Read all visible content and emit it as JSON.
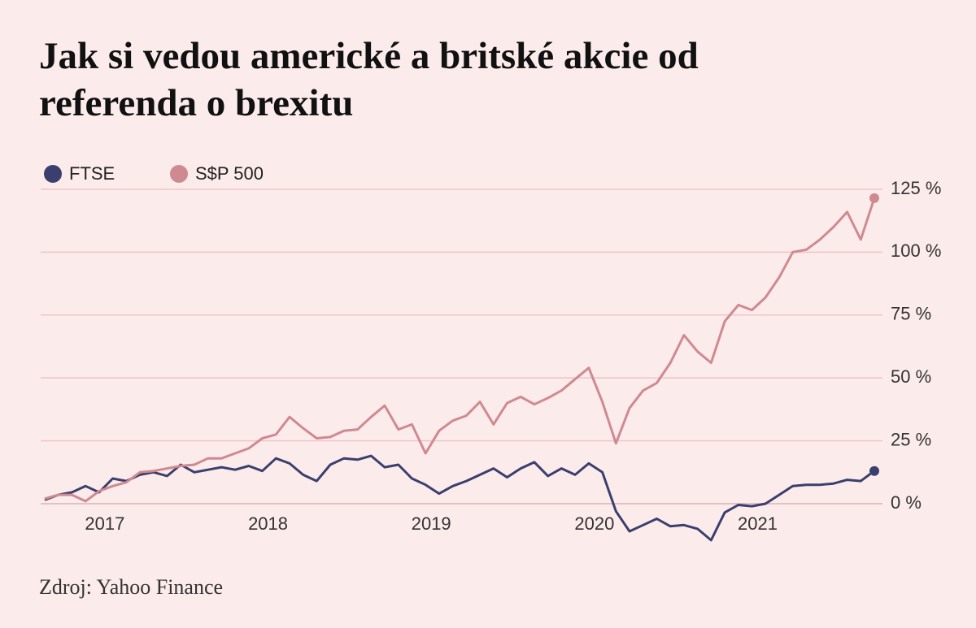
{
  "chart_data": {
    "type": "line",
    "title": [
      "Jak si vedou americké a britské akcie od",
      "referenda o brexitu"
    ],
    "source": "Zdroj: Yahoo Finance",
    "categories": [
      null,
      null,
      null,
      null,
      "2017",
      null,
      null,
      null,
      null,
      null,
      null,
      null,
      null,
      null,
      null,
      null,
      "2018",
      null,
      null,
      null,
      null,
      null,
      null,
      null,
      null,
      null,
      null,
      null,
      "2019",
      null,
      null,
      null,
      null,
      null,
      null,
      null,
      null,
      null,
      null,
      null,
      "2020",
      null,
      null,
      null,
      null,
      null,
      null,
      null,
      null,
      null,
      null,
      null,
      "2021",
      null,
      null,
      null,
      null,
      null,
      null,
      null,
      null,
      null
    ],
    "series": [
      {
        "name": "FTSE",
        "color": "#3b3f6e",
        "values": [
          1.5,
          3.5,
          4.5,
          7,
          4.5,
          10,
          9,
          11.5,
          12.5,
          11,
          15.5,
          12.5,
          13.5,
          14.5,
          13.5,
          15,
          13,
          18,
          16,
          11.5,
          9,
          15.5,
          18,
          17.5,
          19,
          14.5,
          15.5,
          10,
          7.5,
          4,
          7,
          9,
          11.5,
          14,
          10.5,
          14,
          16.5,
          11,
          14,
          11.5,
          16,
          12.5,
          -3,
          -11,
          -8.5,
          -6,
          -9,
          -8.5,
          -10,
          -14.5,
          -3.5,
          -0.5,
          -1,
          0,
          3.5,
          7,
          7.5,
          7.5,
          8,
          9.5,
          9,
          13
        ]
      },
      {
        "name": "S$P 500",
        "color": "#cf8a91",
        "values": [
          2,
          3.5,
          3.5,
          1,
          5,
          7,
          8.5,
          12.5,
          13,
          14,
          15,
          15.5,
          18,
          18,
          20,
          22,
          26,
          27.5,
          34.5,
          30,
          26,
          26.5,
          29,
          29.5,
          34.5,
          39,
          29.5,
          31.5,
          20,
          29,
          33,
          35,
          40.5,
          31.5,
          40,
          42.5,
          39.5,
          42,
          45,
          49.5,
          54,
          40.5,
          24,
          38,
          45,
          48,
          56,
          67,
          60.5,
          56,
          72.5,
          79,
          77,
          82,
          90,
          100,
          101,
          105,
          110,
          116,
          105,
          121.5
        ]
      }
    ],
    "ylim": [
      -15,
      125
    ],
    "yticks": [
      {
        "value": 0,
        "label": "0 %"
      },
      {
        "value": 25,
        "label": "25 %"
      },
      {
        "value": 50,
        "label": "50 %"
      },
      {
        "value": 75,
        "label": "75 %"
      },
      {
        "value": 100,
        "label": "100 %"
      },
      {
        "value": 125,
        "label": "125 %"
      }
    ],
    "grid": true,
    "legend": "top-left"
  }
}
